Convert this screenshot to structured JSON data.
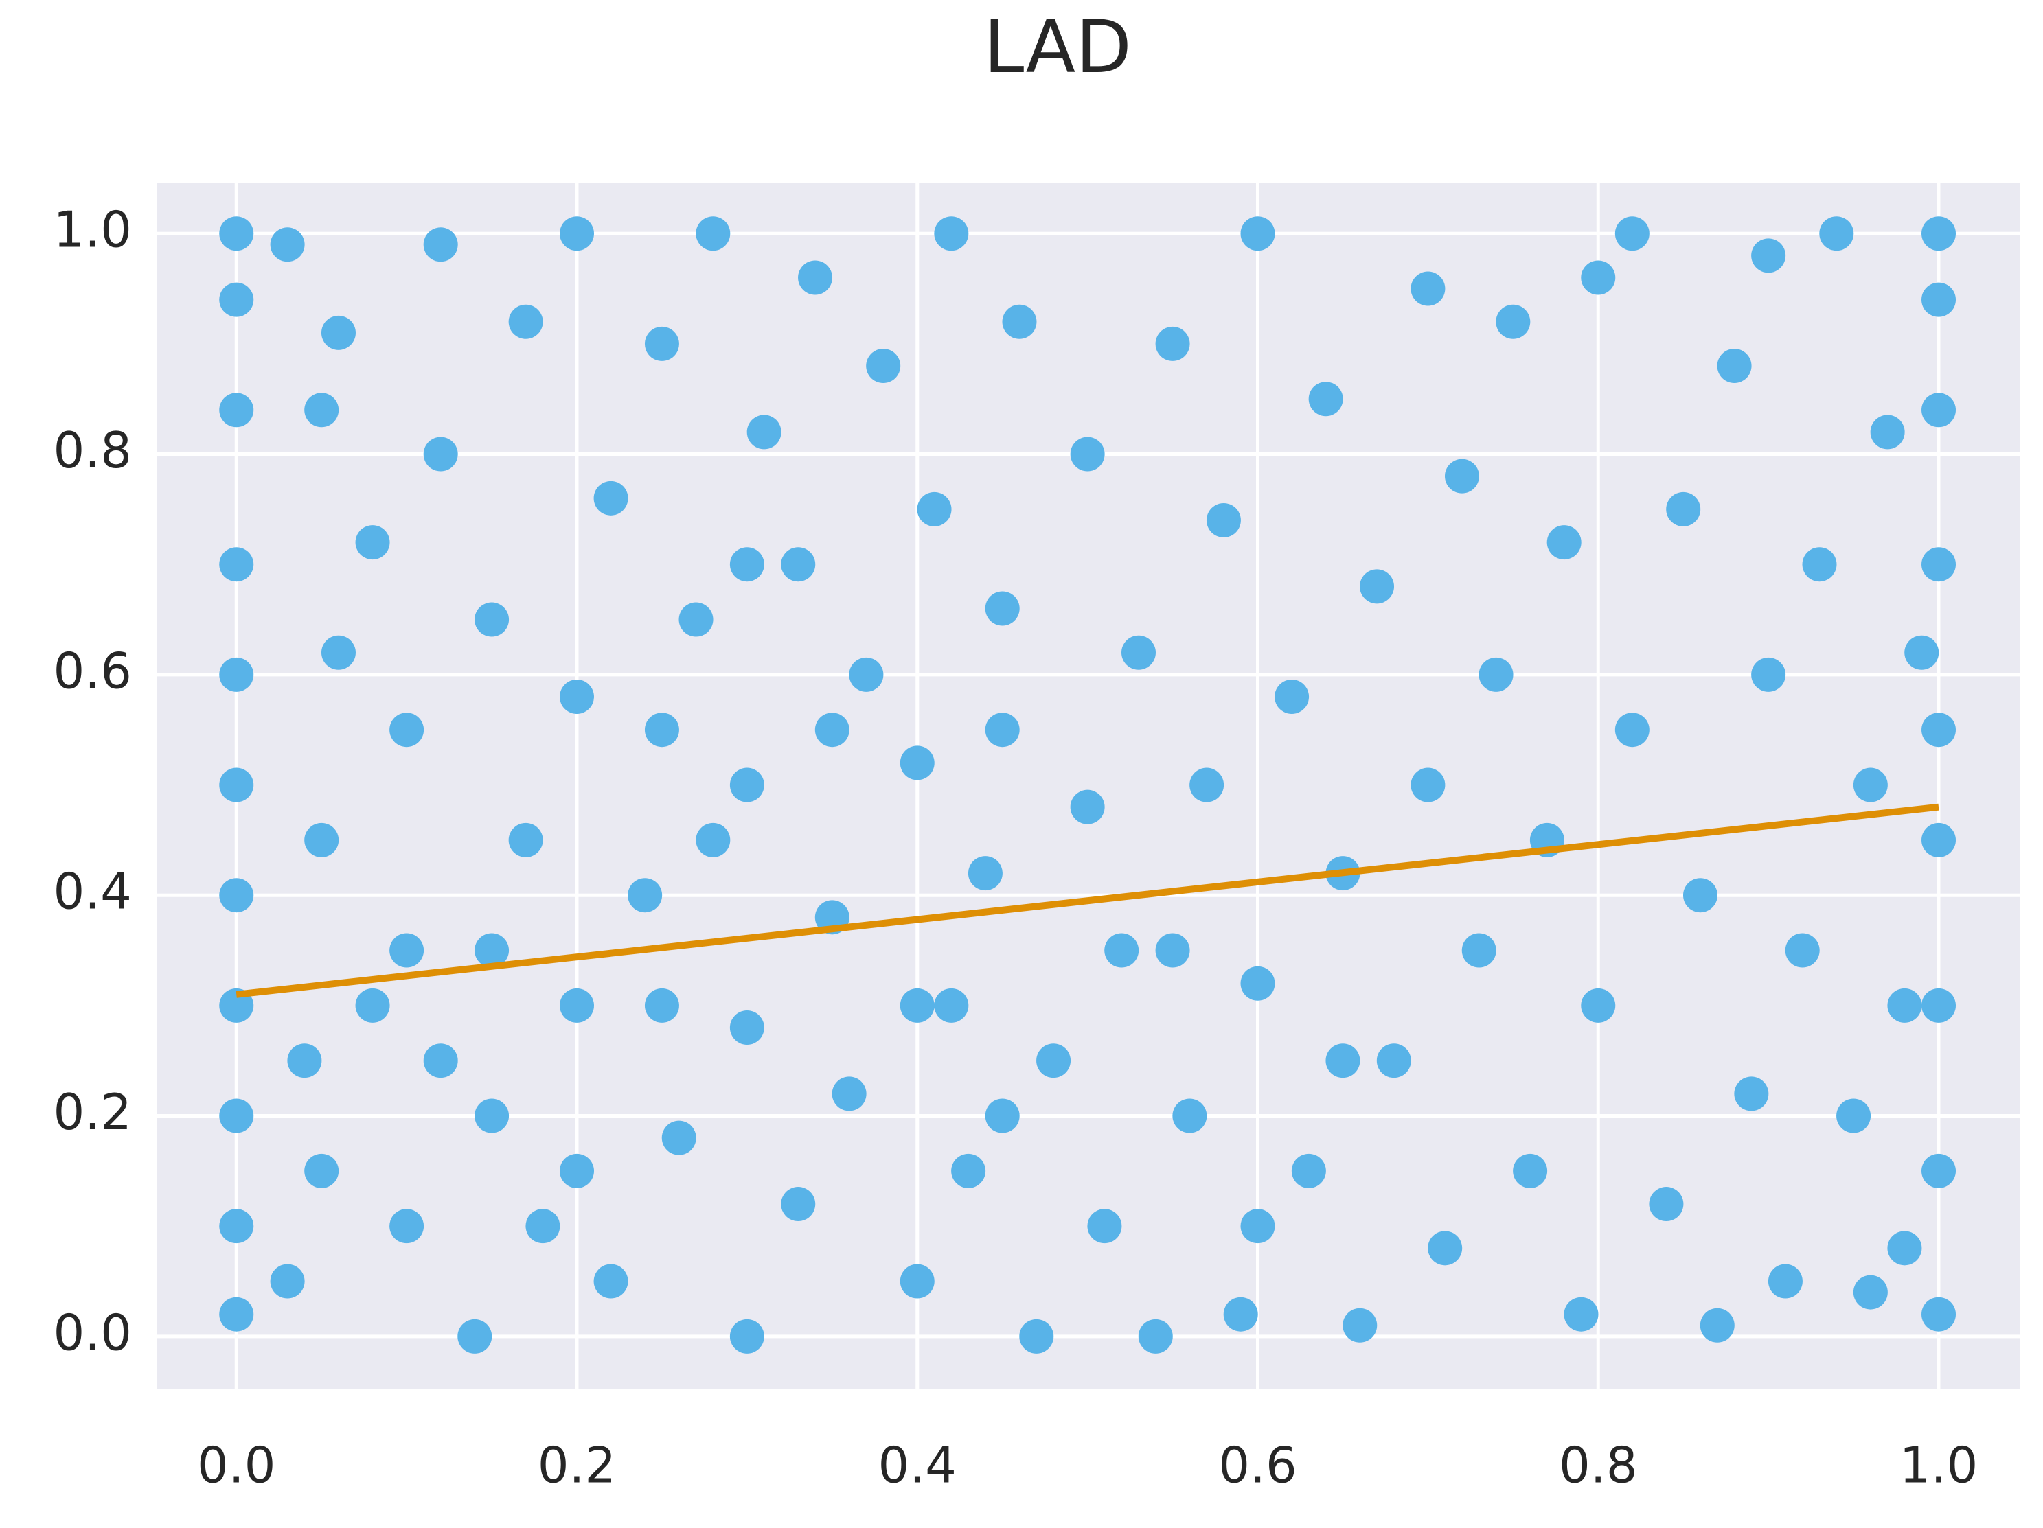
{
  "chart_data": {
    "type": "scatter",
    "title": "LAD",
    "xlim": [
      -0.0469,
      1.0476
    ],
    "ylim": [
      -0.0474,
      1.0462
    ],
    "xticks": [
      {
        "value": 0,
        "label": "0.0"
      },
      0.2,
      0.4,
      0.6,
      0.8,
      {
        "value": 1,
        "label": "1.0"
      }
    ],
    "yticks": [
      {
        "value": 0,
        "label": "0.0"
      },
      0.2,
      0.4,
      0.6,
      0.8,
      {
        "value": 1,
        "label": "1.0"
      }
    ],
    "grid": true,
    "series": [
      {
        "type": "scatter",
        "color": "#58b3e8",
        "x": [
          0,
          0,
          0,
          0,
          0,
          0,
          0,
          0,
          0,
          0,
          0,
          0.03,
          0.04,
          0.05,
          0.06,
          0.05,
          0.03,
          0.06,
          0.08,
          0.1,
          0.1,
          0.1,
          0.12,
          0.12,
          0.14,
          0.15,
          0.15,
          0.17,
          0.17,
          0.18,
          0.2,
          0.2,
          0.2,
          0.22,
          0.22,
          0.24,
          0.25,
          0.26,
          0.27,
          0.28,
          0.3,
          0.3,
          0.3,
          0.31,
          0.33,
          0.33,
          0.34,
          0.35,
          0.36,
          0.37,
          0.38,
          0.4,
          0.4,
          0.4,
          0.41,
          0.42,
          0.43,
          0.44,
          0.45,
          0.46,
          0.47,
          0.48,
          0.5,
          0.5,
          0.51,
          0.52,
          0.53,
          0.54,
          0.55,
          0.56,
          0.57,
          0.58,
          0.59,
          0.6,
          0.6,
          0.62,
          0.63,
          0.64,
          0.65,
          0.66,
          0.67,
          0.68,
          0.7,
          0.7,
          0.71,
          0.72,
          0.73,
          0.74,
          0.75,
          0.76,
          0.77,
          0.78,
          0.79,
          0.8,
          0.8,
          0.82,
          0.82,
          0.84,
          0.85,
          0.86,
          0.87,
          0.88,
          0.89,
          0.9,
          0.9,
          0.91,
          0.92,
          0.93,
          0.94,
          0.95,
          0.96,
          0.96,
          0.97,
          0.98,
          0.98,
          0.99,
          1,
          1,
          1,
          1,
          1,
          1,
          1,
          1,
          1,
          0.05,
          0.08,
          0.12,
          0.15,
          0.2,
          0.25,
          0.28,
          0.35,
          0.42,
          0.45,
          0.55,
          0.6,
          0.65,
          0.25,
          0.3,
          0.45
        ],
        "values": [
          0.02,
          0.1,
          0.2,
          0.3,
          0.4,
          0.5,
          0.6,
          0.7,
          0.84,
          0.94,
          1.0,
          0.05,
          0.25,
          0.45,
          0.62,
          0.84,
          0.99,
          0.91,
          0.72,
          0.1,
          0.35,
          0.55,
          0.8,
          0.99,
          0.0,
          0.2,
          0.65,
          0.45,
          0.92,
          0.1,
          0.3,
          0.58,
          1.0,
          0.76,
          0.05,
          0.4,
          0.9,
          0.18,
          0.65,
          1.0,
          0.0,
          0.28,
          0.5,
          0.82,
          0.12,
          0.7,
          0.96,
          0.38,
          0.22,
          0.6,
          0.88,
          0.05,
          0.3,
          0.52,
          0.75,
          1.0,
          0.15,
          0.42,
          0.66,
          0.92,
          0.0,
          0.25,
          0.48,
          0.8,
          0.1,
          0.35,
          0.62,
          0.0,
          0.9,
          0.2,
          0.5,
          0.74,
          0.02,
          0.32,
          1.0,
          0.58,
          0.15,
          0.85,
          0.42,
          0.01,
          0.68,
          0.25,
          0.95,
          0.5,
          0.08,
          0.78,
          0.35,
          0.6,
          0.92,
          0.15,
          0.45,
          0.72,
          0.02,
          0.3,
          0.96,
          0.55,
          1.0,
          0.12,
          0.75,
          0.4,
          0.01,
          0.88,
          0.22,
          0.6,
          0.98,
          0.05,
          0.35,
          0.7,
          1.0,
          0.2,
          0.5,
          0.04,
          0.82,
          0.3,
          0.08,
          0.62,
          0.02,
          0.15,
          0.3,
          0.45,
          0.55,
          0.7,
          0.84,
          0.94,
          1.0,
          0.15,
          0.3,
          0.25,
          0.35,
          0.15,
          0.3,
          0.45,
          0.55,
          0.3,
          0.2,
          0.35,
          0.1,
          0.25,
          0.55,
          0.7,
          0.55
        ]
      },
      {
        "type": "line",
        "color": "#de8f05",
        "x": [
          0,
          1
        ],
        "values": [
          0.31,
          0.48
        ]
      }
    ]
  }
}
